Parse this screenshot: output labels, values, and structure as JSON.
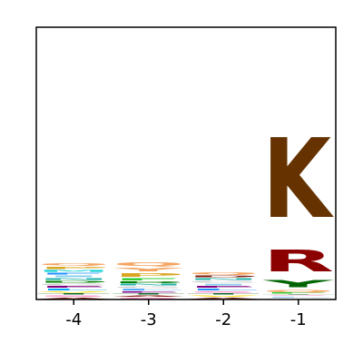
{
  "chart_data": {
    "type": "sequence-logo",
    "title": "",
    "xlabel": "",
    "ylabel": "",
    "positions": [
      "-4",
      "-3",
      "-2",
      "-1"
    ],
    "ylim": [
      0,
      1.0
    ],
    "grid": false,
    "letters": [
      {
        "position": "-4",
        "stack": [
          {
            "letter": "A",
            "height": 0.008,
            "color": "#7f1a0b"
          },
          {
            "letter": "S",
            "height": 0.008,
            "color": "#ff69b4"
          },
          {
            "letter": "T",
            "height": 0.008,
            "color": "#0b6b2b"
          },
          {
            "letter": "V",
            "height": 0.008,
            "color": "#ffd700"
          },
          {
            "letter": "L",
            "height": 0.009,
            "color": "#00aaff"
          },
          {
            "letter": "E",
            "height": 0.009,
            "color": "#800080"
          },
          {
            "letter": "G",
            "height": 0.01,
            "color": "#cccccc"
          },
          {
            "letter": "D",
            "height": 0.01,
            "color": "#008000"
          },
          {
            "letter": "N",
            "height": 0.01,
            "color": "#20b2aa"
          },
          {
            "letter": "I",
            "height": 0.01,
            "color": "#87ceeb"
          },
          {
            "letter": "F",
            "height": 0.01,
            "color": "#1e90ff"
          },
          {
            "letter": "M",
            "height": 0.01,
            "color": "#00ced1"
          },
          {
            "letter": "P",
            "height": 0.012,
            "color": "#daa520"
          },
          {
            "letter": "Q",
            "height": 0.012,
            "color": "#f4a460"
          }
        ]
      },
      {
        "position": "-3",
        "stack": [
          {
            "letter": "S",
            "height": 0.008,
            "color": "#ff69b4"
          },
          {
            "letter": "A",
            "height": 0.008,
            "color": "#7f1a0b"
          },
          {
            "letter": "T",
            "height": 0.008,
            "color": "#0b6b2b"
          },
          {
            "letter": "E",
            "height": 0.008,
            "color": "#800080"
          },
          {
            "letter": "L",
            "height": 0.008,
            "color": "#1e90ff"
          },
          {
            "letter": "G",
            "height": 0.009,
            "color": "#cccccc"
          },
          {
            "letter": "N",
            "height": 0.009,
            "color": "#20b2aa"
          },
          {
            "letter": "D",
            "height": 0.01,
            "color": "#008000"
          },
          {
            "letter": "F",
            "height": 0.012,
            "color": "#32cd32"
          },
          {
            "letter": "P",
            "height": 0.02,
            "color": "#daa520"
          },
          {
            "letter": "Y",
            "height": 0.02,
            "color": "#f4a460"
          },
          {
            "letter": "Q",
            "height": 0.02,
            "color": "#f4a460"
          }
        ]
      },
      {
        "position": "-2",
        "stack": [
          {
            "letter": "A",
            "height": 0.008,
            "color": "#7f1a0b"
          },
          {
            "letter": "V",
            "height": 0.008,
            "color": "#ffd700"
          },
          {
            "letter": "T",
            "height": 0.008,
            "color": "#0b6b2b"
          },
          {
            "letter": "S",
            "height": 0.008,
            "color": "#ff69b4"
          },
          {
            "letter": "L",
            "height": 0.009,
            "color": "#1e90ff"
          },
          {
            "letter": "E",
            "height": 0.009,
            "color": "#800080"
          },
          {
            "letter": "I",
            "height": 0.009,
            "color": "#87ceeb"
          },
          {
            "letter": "G",
            "height": 0.01,
            "color": "#cccccc"
          },
          {
            "letter": "N",
            "height": 0.01,
            "color": "#20b2aa"
          },
          {
            "letter": "D",
            "height": 0.01,
            "color": "#7f1a0b"
          },
          {
            "letter": "Q",
            "height": 0.012,
            "color": "#f4a460"
          }
        ]
      },
      {
        "position": "-1",
        "stack": [
          {
            "letter": "A",
            "height": 0.004,
            "color": "#7f1a0b"
          },
          {
            "letter": "G",
            "height": 0.004,
            "color": "#cccccc"
          },
          {
            "letter": "L",
            "height": 0.004,
            "color": "#1e90ff"
          },
          {
            "letter": "S",
            "height": 0.004,
            "color": "#ff69b4"
          },
          {
            "letter": "T",
            "height": 0.004,
            "color": "#0b6b2b"
          },
          {
            "letter": "F",
            "height": 0.005,
            "color": "#32cd32"
          },
          {
            "letter": "Q",
            "height": 0.012,
            "color": "#f4a460"
          },
          {
            "letter": "Y",
            "height": 0.04,
            "color": "#006400"
          },
          {
            "letter": "R",
            "height": 0.13,
            "color": "#8b0000"
          },
          {
            "letter": "K",
            "height": 0.47,
            "color": "#663300"
          }
        ]
      }
    ]
  }
}
